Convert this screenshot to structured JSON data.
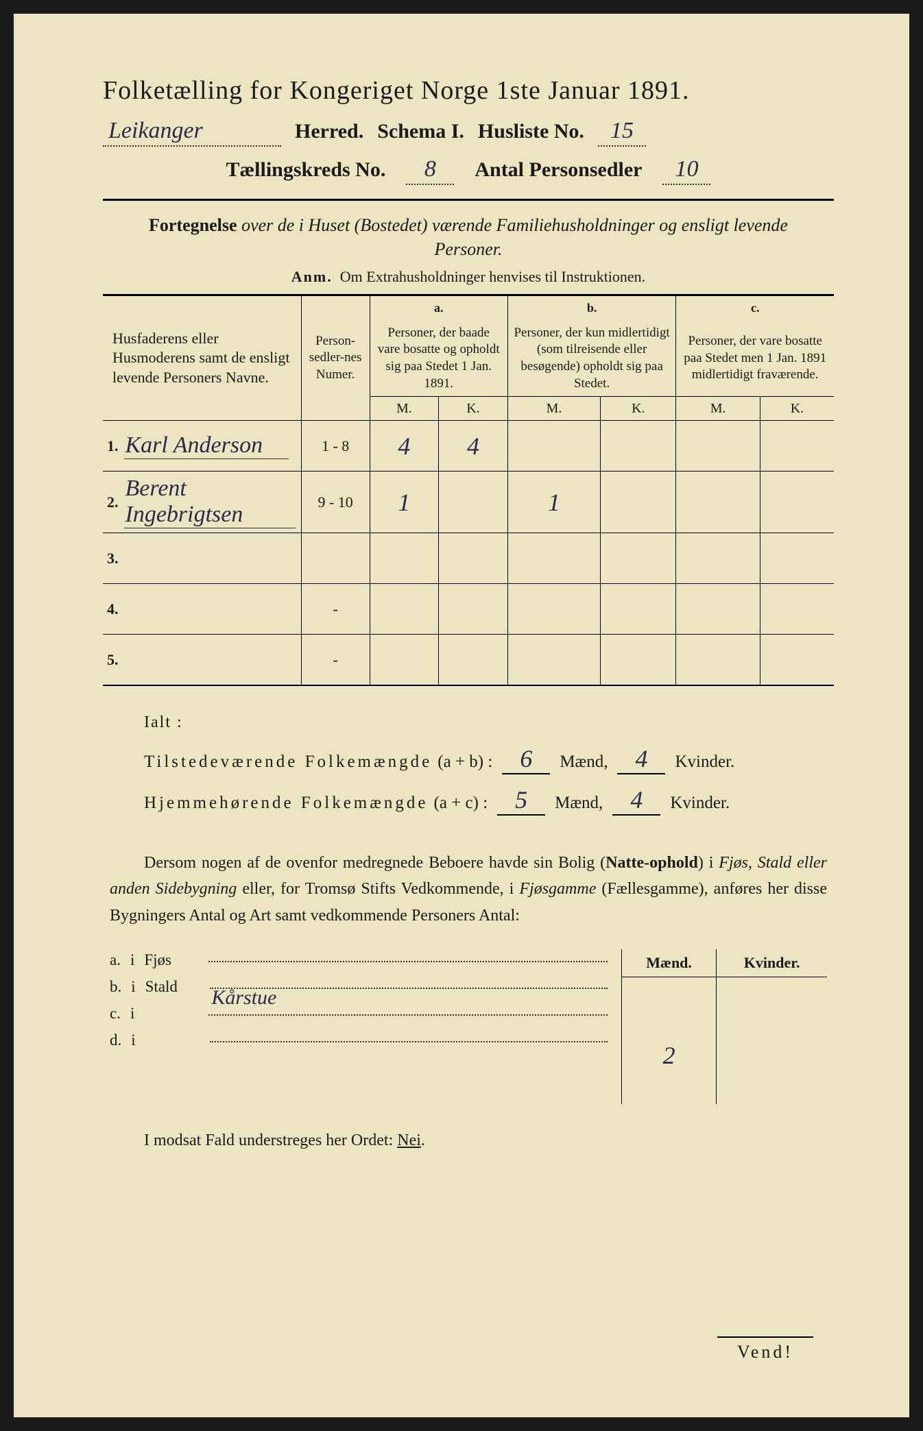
{
  "colors": {
    "paper": "#ede4c1",
    "ink": "#1a1a1a",
    "handwriting": "#2a2a4a",
    "outer": "#1a1a1a"
  },
  "header": {
    "title": "Folketælling for Kongeriget Norge 1ste Januar 1891.",
    "herred_value": "Leikanger",
    "herred_label": "Herred.",
    "schema_label": "Schema I.",
    "husliste_label": "Husliste No.",
    "husliste_value": "15",
    "kreds_label": "Tællingskreds No.",
    "kreds_value": "8",
    "antal_label": "Antal Personsedler",
    "antal_value": "10"
  },
  "subtitle": {
    "line1_prefix": "Fortegnelse",
    "line1_rest": " over de i Huset (Bostedet) værende Familiehusholdninger og ensligt levende Personer.",
    "anm_label": "Anm.",
    "anm_text": "Om Extrahusholdninger henvises til Instruktionen."
  },
  "table": {
    "col_names_header": "Husfaderens eller Husmoderens samt de ensligt levende Personers Navne.",
    "col_num_header": "Person-sedler-nes Numer.",
    "col_a_label": "a.",
    "col_a_text": "Personer, der baade vare bosatte og opholdt sig paa Stedet 1 Jan. 1891.",
    "col_b_label": "b.",
    "col_b_text": "Personer, der kun midlertidigt (som tilreisende eller besøgende) opholdt sig paa Stedet.",
    "col_c_label": "c.",
    "col_c_text": "Personer, der vare bosatte paa Stedet men 1 Jan. 1891 midlertidigt fraværende.",
    "m_label": "M.",
    "k_label": "K.",
    "rows": [
      {
        "num": "1.",
        "name": "Karl Anderson",
        "sedler": "1 - 8",
        "a_m": "4",
        "a_k": "4",
        "b_m": "",
        "b_k": "",
        "c_m": "",
        "c_k": ""
      },
      {
        "num": "2.",
        "name": "Berent Ingebrigtsen",
        "sedler": "9 - 10",
        "a_m": "1",
        "a_k": "",
        "b_m": "1",
        "b_k": "",
        "c_m": "",
        "c_k": ""
      },
      {
        "num": "3.",
        "name": "",
        "sedler": "",
        "a_m": "",
        "a_k": "",
        "b_m": "",
        "b_k": "",
        "c_m": "",
        "c_k": ""
      },
      {
        "num": "4.",
        "name": "",
        "sedler": "-",
        "a_m": "",
        "a_k": "",
        "b_m": "",
        "b_k": "",
        "c_m": "",
        "c_k": ""
      },
      {
        "num": "5.",
        "name": "",
        "sedler": "-",
        "a_m": "",
        "a_k": "",
        "b_m": "",
        "b_k": "",
        "c_m": "",
        "c_k": ""
      }
    ]
  },
  "totals": {
    "ialt_label": "Ialt :",
    "row1_label": "Tilstedeværende Folkemængde",
    "row1_paren": "(a + b) :",
    "row1_m": "6",
    "row1_k": "4",
    "row2_label": "Hjemmehørende Folkemængde",
    "row2_paren": "(a + c) :",
    "row2_m": "5",
    "row2_k": "4",
    "maend_label": "Mænd,",
    "kvinder_label": "Kvinder."
  },
  "paragraph": {
    "text_1": "Dersom nogen af de ovenfor medregnede Beboere havde sin Bolig (",
    "bold_1": "Natte-ophold",
    "text_2": ") i ",
    "ital_1": "Fjøs, Stald eller anden Sidebygning",
    "text_3": " eller, for Tromsø Stifts Vedkommende, i ",
    "ital_2": "Fjøsgamme",
    "text_4": " (Fællesgamme), anføres her disse Bygningers Antal og Art samt vedkommende Personers Antal:"
  },
  "sidebuild": {
    "maend_header": "Mænd.",
    "kvinder_header": "Kvinder.",
    "rows": [
      {
        "letter": "a.",
        "i": "i",
        "label": "Fjøs",
        "value": "",
        "m": "",
        "k": ""
      },
      {
        "letter": "b.",
        "i": "i",
        "label": "Stald",
        "value": "",
        "m": "",
        "k": ""
      },
      {
        "letter": "c.",
        "i": "i",
        "label": "",
        "value": "Kårstue",
        "m": "2",
        "k": ""
      },
      {
        "letter": "d.",
        "i": "i",
        "label": "",
        "value": "",
        "m": "",
        "k": ""
      }
    ]
  },
  "footer": {
    "modsat_text_1": "I modsat Fald understreges her Ordet: ",
    "modsat_nei": "Nei",
    "vend": "Vend!"
  }
}
